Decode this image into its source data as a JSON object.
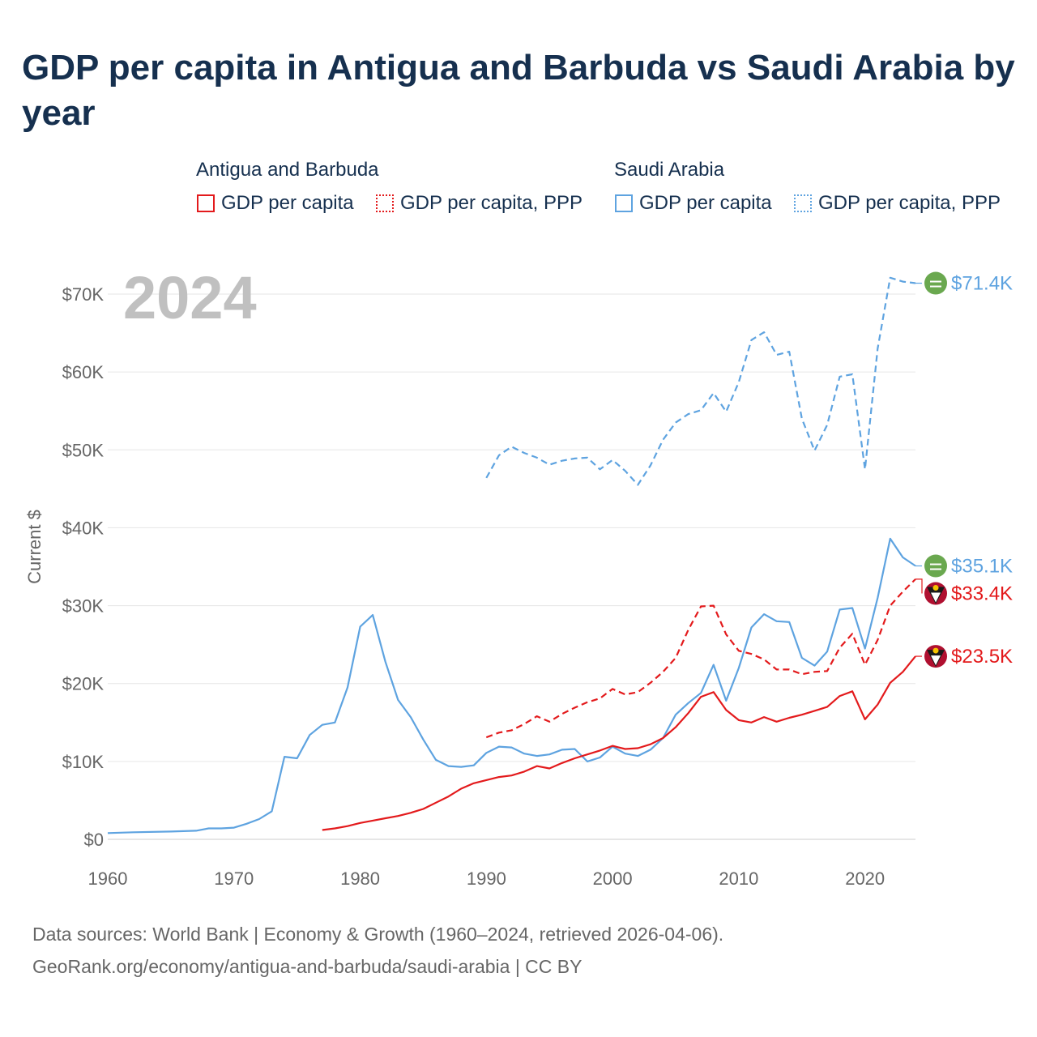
{
  "title": "GDP per capita in Antigua and Barbuda vs Saudi Arabia by year",
  "legend": {
    "group_a": "Antigua and Barbuda",
    "group_b": "Saudi Arabia",
    "a_gdp": "GDP per capita",
    "a_ppp": "GDP per capita, PPP",
    "b_gdp": "GDP per capita",
    "b_ppp": "GDP per capita, PPP"
  },
  "colors": {
    "antigua": "#e31a1c",
    "saudi": "#5ea3e0",
    "grid": "#e6e6e6",
    "year": "#c0c0c0"
  },
  "footer": {
    "line1": "Data sources: World Bank | Economy & Growth (1960–2024, retrieved 2026-04-06).",
    "line2": "GeoRank.org/economy/antigua-and-barbuda/saudi-arabia | CC BY"
  },
  "chart_data": {
    "type": "line",
    "title": "GDP per capita in Antigua and Barbuda vs Saudi Arabia by year",
    "year_label": "2024",
    "ylabel": "Current $",
    "xlabel": "",
    "xlim": [
      1960,
      2024
    ],
    "ylim": [
      0,
      75000
    ],
    "x_ticks": [
      1960,
      1970,
      1980,
      1990,
      2000,
      2010,
      2020
    ],
    "x_tick_labels": [
      "1960",
      "1970",
      "1980",
      "1990",
      "2000",
      "2010",
      "2020"
    ],
    "y_ticks": [
      0,
      10000,
      20000,
      30000,
      40000,
      50000,
      60000,
      70000
    ],
    "y_tick_labels": [
      "$0",
      "$10K",
      "$20K",
      "$30K",
      "$40K",
      "$50K",
      "$60K",
      "$70K"
    ],
    "series": [
      {
        "name": "Saudi Arabia GDP per capita",
        "country": "saudi",
        "style": "solid",
        "end_label": "$35.1K",
        "x": [
          1960,
          1962,
          1965,
          1967,
          1968,
          1969,
          1970,
          1971,
          1972,
          1973,
          1974,
          1975,
          1976,
          1977,
          1978,
          1979,
          1980,
          1981,
          1982,
          1983,
          1984,
          1985,
          1986,
          1987,
          1988,
          1989,
          1990,
          1991,
          1992,
          1993,
          1994,
          1995,
          1996,
          1997,
          1998,
          1999,
          2000,
          2001,
          2002,
          2003,
          2004,
          2005,
          2006,
          2007,
          2008,
          2009,
          2010,
          2011,
          2012,
          2013,
          2014,
          2015,
          2016,
          2017,
          2018,
          2019,
          2020,
          2021,
          2022,
          2023,
          2024
        ],
        "y": [
          800,
          900,
          1000,
          1100,
          1400,
          1400,
          1500,
          2000,
          2600,
          3600,
          10600,
          10400,
          13400,
          14700,
          15000,
          19500,
          27300,
          28800,
          22800,
          17900,
          15700,
          12800,
          10200,
          9400,
          9300,
          9500,
          11100,
          11900,
          11800,
          11000,
          10700,
          10900,
          11500,
          11600,
          10000,
          10500,
          11900,
          11000,
          10700,
          11500,
          13000,
          16000,
          17500,
          18800,
          22400,
          17800,
          22000,
          27200,
          28900,
          28000,
          27900,
          23300,
          22300,
          24100,
          29500,
          29700,
          24500,
          31000,
          38600,
          36200,
          35100
        ]
      },
      {
        "name": "Saudi Arabia GDP per capita, PPP",
        "country": "saudi",
        "style": "dashed",
        "end_label": "$71.4K",
        "x": [
          1990,
          1991,
          1992,
          1993,
          1994,
          1995,
          1996,
          1997,
          1998,
          1999,
          2000,
          2001,
          2002,
          2003,
          2004,
          2005,
          2006,
          2007,
          2008,
          2009,
          2010,
          2011,
          2012,
          2013,
          2014,
          2015,
          2016,
          2017,
          2018,
          2019,
          2020,
          2021,
          2022,
          2023,
          2024
        ],
        "y": [
          46400,
          49300,
          50400,
          49600,
          49000,
          48100,
          48600,
          48900,
          49000,
          47500,
          48700,
          47300,
          45500,
          48000,
          51300,
          53500,
          54600,
          55100,
          57300,
          54900,
          58700,
          64100,
          65100,
          62200,
          62600,
          54000,
          49900,
          53200,
          59400,
          59700,
          47500,
          63000,
          72100,
          71600,
          71400
        ]
      },
      {
        "name": "Antigua and Barbuda GDP per capita",
        "country": "antigua",
        "style": "solid",
        "end_label": "$23.5K",
        "x": [
          1977,
          1978,
          1979,
          1980,
          1981,
          1982,
          1983,
          1984,
          1985,
          1986,
          1987,
          1988,
          1989,
          1990,
          1991,
          1992,
          1993,
          1994,
          1995,
          1996,
          1997,
          1998,
          1999,
          2000,
          2001,
          2002,
          2003,
          2004,
          2005,
          2006,
          2007,
          2008,
          2009,
          2010,
          2011,
          2012,
          2013,
          2014,
          2015,
          2016,
          2017,
          2018,
          2019,
          2020,
          2021,
          2022,
          2023,
          2024
        ],
        "y": [
          1200,
          1400,
          1700,
          2100,
          2400,
          2700,
          3000,
          3400,
          3900,
          4700,
          5500,
          6500,
          7200,
          7600,
          8000,
          8200,
          8700,
          9400,
          9100,
          9800,
          10400,
          10900,
          11400,
          12000,
          11600,
          11700,
          12200,
          13000,
          14400,
          16200,
          18300,
          18900,
          16600,
          15300,
          15000,
          15700,
          15100,
          15600,
          16000,
          16500,
          17000,
          18400,
          19000,
          15400,
          17300,
          20100,
          21500,
          23500
        ]
      },
      {
        "name": "Antigua and Barbuda GDP per capita, PPP",
        "country": "antigua",
        "style": "dashed",
        "end_label": "$33.4K",
        "x": [
          1990,
          1991,
          1992,
          1993,
          1994,
          1995,
          1996,
          1997,
          1998,
          1999,
          2000,
          2001,
          2002,
          2003,
          2004,
          2005,
          2006,
          2007,
          2008,
          2009,
          2010,
          2011,
          2012,
          2013,
          2014,
          2015,
          2016,
          2017,
          2018,
          2019,
          2020,
          2021,
          2022,
          2023,
          2024
        ],
        "y": [
          13100,
          13700,
          14000,
          14800,
          15800,
          15100,
          16100,
          16900,
          17600,
          18100,
          19300,
          18600,
          18900,
          20100,
          21500,
          23300,
          26900,
          29900,
          30000,
          26300,
          24200,
          23800,
          23100,
          21800,
          21800,
          21200,
          21500,
          21600,
          24600,
          26400,
          22400,
          25600,
          30000,
          31800,
          33400
        ]
      }
    ]
  }
}
